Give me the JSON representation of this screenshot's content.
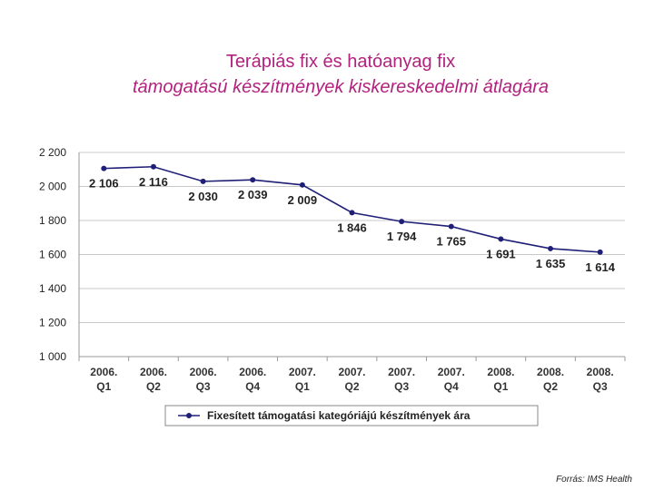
{
  "title_line1": "Terápiás fix és hatóanyag fix",
  "title_line2": "támogatású készítmények kiskereskedelmi átlagára",
  "source": "Forrás: IMS Health",
  "colors": {
    "title": "#b3217f",
    "series": "#1f1f78",
    "grid": "#c8c8c8"
  },
  "chart_data": {
    "type": "line",
    "categories": [
      [
        "2006.",
        "Q1"
      ],
      [
        "2006.",
        "Q2"
      ],
      [
        "2006.",
        "Q3"
      ],
      [
        "2006.",
        "Q4"
      ],
      [
        "2007.",
        "Q1"
      ],
      [
        "2007.",
        "Q2"
      ],
      [
        "2007.",
        "Q3"
      ],
      [
        "2007.",
        "Q4"
      ],
      [
        "2008.",
        "Q1"
      ],
      [
        "2008.",
        "Q2"
      ],
      [
        "2008.",
        "Q3"
      ]
    ],
    "series": [
      {
        "name": "Fixesített támogatási kategóriájú készítmények ára",
        "values": [
          2106,
          2116,
          2030,
          2039,
          2009,
          1846,
          1794,
          1765,
          1691,
          1635,
          1614
        ],
        "labels": [
          "2 106",
          "2 116",
          "2 030",
          "2 039",
          "2 009",
          "1 846",
          "1 794",
          "1 765",
          "1 691",
          "1 635",
          "1 614"
        ]
      }
    ],
    "yticks": [
      {
        "value": 1000,
        "label": "1 000"
      },
      {
        "value": 1200,
        "label": "1 200"
      },
      {
        "value": 1400,
        "label": "1 400"
      },
      {
        "value": 1600,
        "label": "1 600"
      },
      {
        "value": 1800,
        "label": "1 800"
      },
      {
        "value": 2000,
        "label": "2 000"
      },
      {
        "value": 2200,
        "label": "2 200"
      }
    ],
    "ylim": [
      1000,
      2200
    ],
    "grid": true,
    "legend": "bottom"
  }
}
